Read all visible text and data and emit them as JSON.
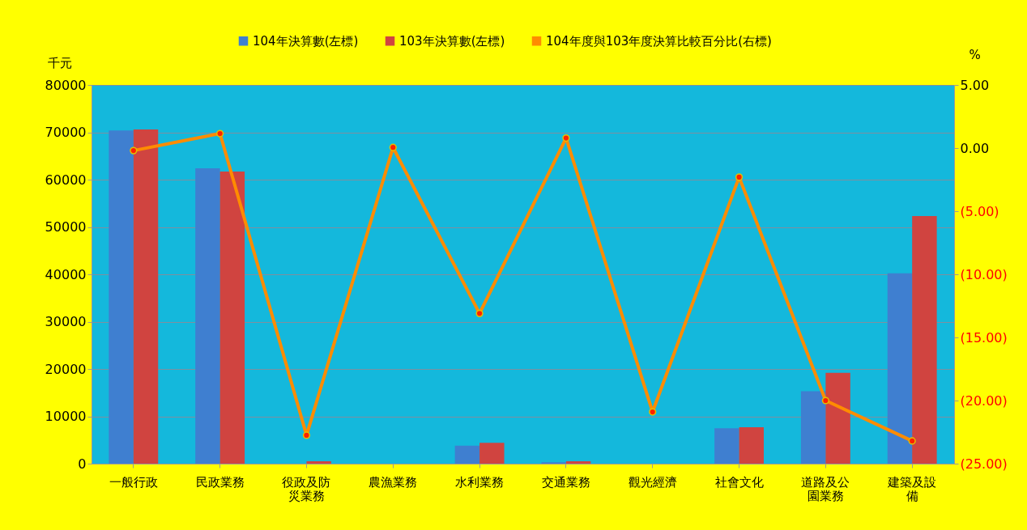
{
  "chart_data": {
    "type": "bar",
    "categories": [
      "一般行政",
      "民政業務",
      "役政及防災業務",
      "農漁業務",
      "水利業務",
      "交通業務",
      "觀光經濟",
      "社會文化",
      "道路及公園業務",
      "建築及設備"
    ],
    "ylabel": "千元",
    "y2label": "%",
    "series": [
      {
        "name": "104年決算數(左標)",
        "color": "#3f7fd0",
        "values": [
          70400,
          62400,
          null,
          0,
          3800,
          300,
          0,
          7500,
          15300,
          40200
        ]
      },
      {
        "name": "103年決算數(左標)",
        "color": "#d04440",
        "values": [
          70600,
          61700,
          500,
          0,
          4400,
          500,
          0,
          7700,
          19200,
          52300
        ]
      },
      {
        "name": "104年度與103年度決算比較百分比(右標)",
        "type": "line",
        "axis": "y2",
        "color": "#ff8c00",
        "marker": "circle",
        "values": [
          -0.2,
          1.15,
          -22.75,
          0.05,
          -13.1,
          0.8,
          -20.9,
          -2.3,
          -20.0,
          -23.2
        ]
      }
    ],
    "ylim": [
      0,
      80000
    ],
    "yticks": [
      0,
      10000,
      20000,
      30000,
      40000,
      50000,
      60000,
      70000,
      80000
    ],
    "y2lim": [
      -25,
      5
    ],
    "y2ticks": [
      {
        "value": 5,
        "label": "5.00"
      },
      {
        "value": 0,
        "label": "0.00"
      },
      {
        "value": -5,
        "label": "(5.00)"
      },
      {
        "value": -10,
        "label": "(10.00)"
      },
      {
        "value": -15,
        "label": "(15.00)"
      },
      {
        "value": -20,
        "label": "(20.00)"
      },
      {
        "value": -25,
        "label": "(25.00)"
      }
    ],
    "grid": "y",
    "legend": "top"
  }
}
